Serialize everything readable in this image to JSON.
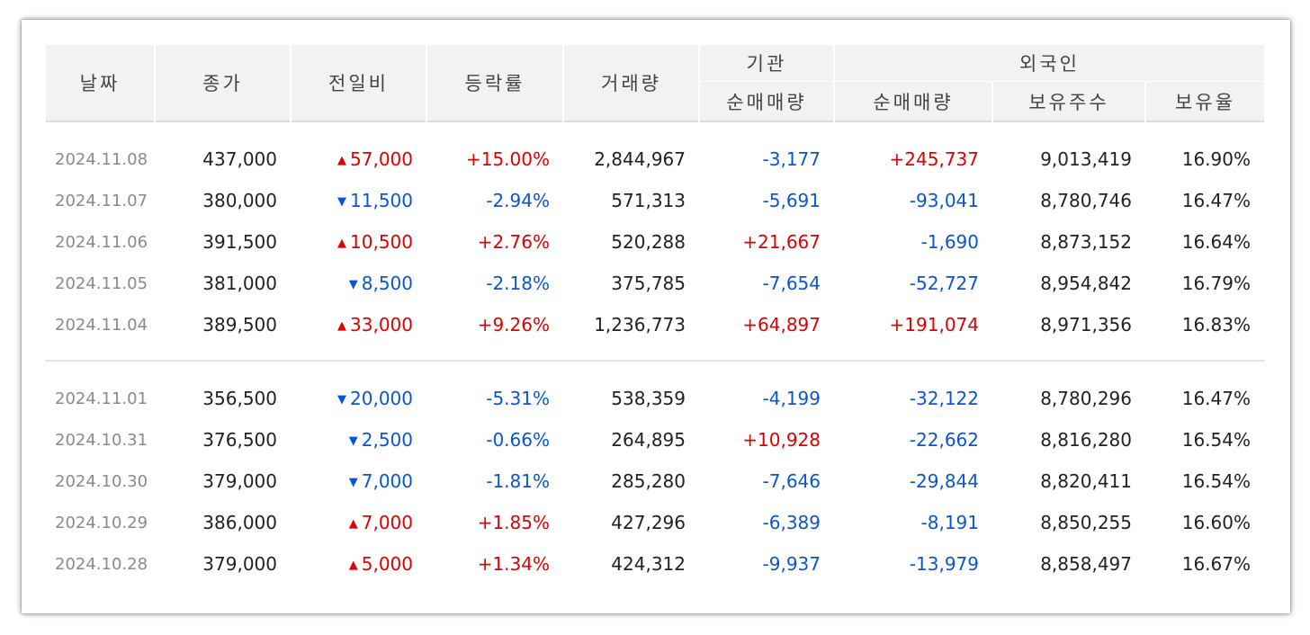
{
  "columns": {
    "date": "날짜",
    "close": "종가",
    "change": "전일비",
    "rate": "등락률",
    "volume": "거래량",
    "institution_group": "기관",
    "institution_net": "순매매량",
    "foreign_group": "외국인",
    "foreign_net": "순매매량",
    "foreign_holding": "보유주수",
    "foreign_ratio": "보유율"
  },
  "icons": {
    "up": "triangle-up-icon",
    "down": "triangle-down-icon"
  },
  "colors": {
    "up": "#e00000",
    "down": "#0a55d6",
    "header_bg": "#f2f2f2"
  },
  "groups": [
    [
      {
        "date": "2024.11.08",
        "close": "437,000",
        "dir": "up",
        "change": "57,000",
        "rate": "+15.00%",
        "volume": "2,844,967",
        "inst": "-3,177",
        "inst_dir": "down",
        "foreign": "+245,737",
        "foreign_dir": "up",
        "holding": "9,013,419",
        "ratio": "16.90%"
      },
      {
        "date": "2024.11.07",
        "close": "380,000",
        "dir": "down",
        "change": "11,500",
        "rate": "-2.94%",
        "volume": "571,313",
        "inst": "-5,691",
        "inst_dir": "down",
        "foreign": "-93,041",
        "foreign_dir": "down",
        "holding": "8,780,746",
        "ratio": "16.47%"
      },
      {
        "date": "2024.11.06",
        "close": "391,500",
        "dir": "up",
        "change": "10,500",
        "rate": "+2.76%",
        "volume": "520,288",
        "inst": "+21,667",
        "inst_dir": "up",
        "foreign": "-1,690",
        "foreign_dir": "down",
        "holding": "8,873,152",
        "ratio": "16.64%"
      },
      {
        "date": "2024.11.05",
        "close": "381,000",
        "dir": "down",
        "change": "8,500",
        "rate": "-2.18%",
        "volume": "375,785",
        "inst": "-7,654",
        "inst_dir": "down",
        "foreign": "-52,727",
        "foreign_dir": "down",
        "holding": "8,954,842",
        "ratio": "16.79%"
      },
      {
        "date": "2024.11.04",
        "close": "389,500",
        "dir": "up",
        "change": "33,000",
        "rate": "+9.26%",
        "volume": "1,236,773",
        "inst": "+64,897",
        "inst_dir": "up",
        "foreign": "+191,074",
        "foreign_dir": "up",
        "holding": "8,971,356",
        "ratio": "16.83%"
      }
    ],
    [
      {
        "date": "2024.11.01",
        "close": "356,500",
        "dir": "down",
        "change": "20,000",
        "rate": "-5.31%",
        "volume": "538,359",
        "inst": "-4,199",
        "inst_dir": "down",
        "foreign": "-32,122",
        "foreign_dir": "down",
        "holding": "8,780,296",
        "ratio": "16.47%"
      },
      {
        "date": "2024.10.31",
        "close": "376,500",
        "dir": "down",
        "change": "2,500",
        "rate": "-0.66%",
        "volume": "264,895",
        "inst": "+10,928",
        "inst_dir": "up",
        "foreign": "-22,662",
        "foreign_dir": "down",
        "holding": "8,816,280",
        "ratio": "16.54%"
      },
      {
        "date": "2024.10.30",
        "close": "379,000",
        "dir": "down",
        "change": "7,000",
        "rate": "-1.81%",
        "volume": "285,280",
        "inst": "-7,646",
        "inst_dir": "down",
        "foreign": "-29,844",
        "foreign_dir": "down",
        "holding": "8,820,411",
        "ratio": "16.54%"
      },
      {
        "date": "2024.10.29",
        "close": "386,000",
        "dir": "up",
        "change": "7,000",
        "rate": "+1.85%",
        "volume": "427,296",
        "inst": "-6,389",
        "inst_dir": "down",
        "foreign": "-8,191",
        "foreign_dir": "down",
        "holding": "8,850,255",
        "ratio": "16.60%"
      },
      {
        "date": "2024.10.28",
        "close": "379,000",
        "dir": "up",
        "change": "5,000",
        "rate": "+1.34%",
        "volume": "424,312",
        "inst": "-9,937",
        "inst_dir": "down",
        "foreign": "-13,979",
        "foreign_dir": "down",
        "holding": "8,858,497",
        "ratio": "16.67%"
      }
    ]
  ]
}
